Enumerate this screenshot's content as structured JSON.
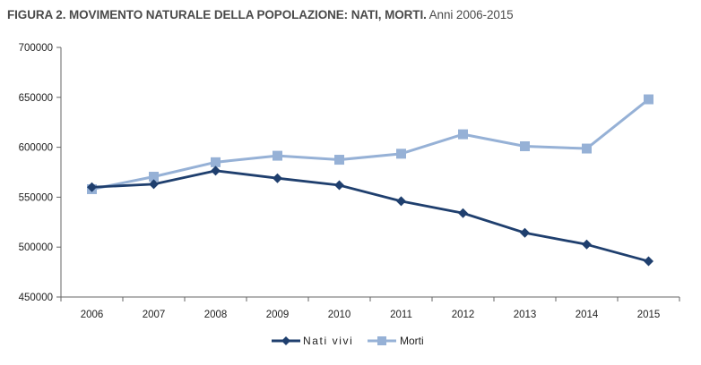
{
  "title": {
    "bold": "FIGURA 2. MOVIMENTO NATURALE DELLA POPOLAZIONE: NATI, MORTI.",
    "normal": "Anni 2006-2015"
  },
  "chart_data": {
    "type": "line",
    "title": "FIGURA 2. MOVIMENTO NATURALE DELLA POPOLAZIONE: NATI, MORTI. Anni 2006-2015",
    "categories": [
      "2006",
      "2007",
      "2008",
      "2009",
      "2010",
      "2011",
      "2012",
      "2013",
      "2014",
      "2015"
    ],
    "ylim": [
      450000,
      700000
    ],
    "yticks": [
      "450000",
      "500000",
      "550000",
      "600000",
      "650000",
      "700000"
    ],
    "grid": false,
    "legend_position": "bottom",
    "series": [
      {
        "name": "Nati vivi",
        "color": "#1f3f6e",
        "marker": "diamond",
        "values": [
          560000,
          563000,
          576500,
          569000,
          562000,
          546000,
          534000,
          514300,
          502600,
          485800
        ]
      },
      {
        "name": "Morti",
        "color": "#96b1d6",
        "marker": "square",
        "values": [
          558000,
          570500,
          585000,
          591500,
          587500,
          593500,
          613000,
          601000,
          598700,
          648000
        ]
      }
    ]
  }
}
